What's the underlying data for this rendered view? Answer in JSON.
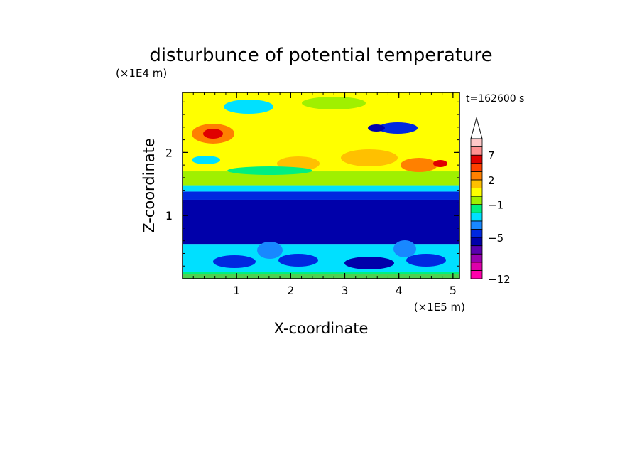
{
  "chart_data": {
    "type": "heatmap",
    "title": "disturbunce of potential temperature",
    "xlabel": "X-coordinate",
    "ylabel": "Z-coordinate",
    "x_unit": "(×1E5 m)",
    "y_unit": "(×1E4 m)",
    "time_label": "t=162600 s",
    "xticks": [
      1,
      2,
      3,
      4,
      5
    ],
    "yticks": [
      1,
      2
    ],
    "xlim": [
      0,
      5.12
    ],
    "ylim": [
      0,
      2.95
    ],
    "colorbar": {
      "tick_labels": [
        "7",
        "2",
        "−1",
        "−5",
        "−12"
      ],
      "colors": [
        "#ff00aa",
        "#dd00aa",
        "#9a00b0",
        "#5a00b0",
        "#0000aa",
        "#0028e0",
        "#1888ff",
        "#00e0ff",
        "#00f080",
        "#a0f000",
        "#ffff00",
        "#ffc000",
        "#ff8000",
        "#ff4000",
        "#e00000",
        "#ff9090",
        "#ffc8c8"
      ]
    },
    "field_layers": [
      {
        "z": [
          0.0,
          0.08
        ],
        "color": "#50d050"
      },
      {
        "z": [
          0.08,
          0.55
        ],
        "color": "#00e0ff"
      },
      {
        "z": [
          0.55,
          1.25
        ],
        "color": "#0000aa"
      },
      {
        "z": [
          1.25,
          1.38
        ],
        "color": "#0028e0"
      },
      {
        "z": [
          1.38,
          1.48
        ],
        "color": "#00e0ff"
      },
      {
        "z": [
          1.48,
          1.7
        ],
        "color": "#a0f000"
      },
      {
        "z": [
          1.7,
          2.95
        ],
        "color": "#ffff00"
      }
    ]
  }
}
